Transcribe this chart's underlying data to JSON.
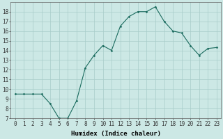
{
  "x": [
    0,
    1,
    2,
    3,
    4,
    5,
    6,
    7,
    8,
    9,
    10,
    11,
    12,
    13,
    14,
    15,
    16,
    17,
    18,
    19,
    20,
    21,
    22,
    23
  ],
  "y": [
    9.5,
    9.5,
    9.5,
    9.5,
    8.5,
    7.0,
    7.0,
    8.8,
    12.2,
    13.5,
    14.5,
    14.0,
    16.5,
    17.5,
    18.0,
    18.0,
    18.5,
    17.0,
    16.0,
    15.8,
    14.5,
    13.5,
    14.2,
    14.3
  ],
  "line_color": "#1a6b5e",
  "marker": "D",
  "marker_size": 1.5,
  "line_width": 0.8,
  "bg_color": "#cce8e5",
  "grid_color": "#a8ccc9",
  "xlabel": "Humidex (Indice chaleur)",
  "xlim": [
    -0.5,
    23.5
  ],
  "ylim": [
    7,
    19
  ],
  "yticks": [
    7,
    8,
    9,
    10,
    11,
    12,
    13,
    14,
    15,
    16,
    17,
    18
  ],
  "xticks": [
    0,
    1,
    2,
    3,
    4,
    5,
    6,
    7,
    8,
    9,
    10,
    11,
    12,
    13,
    14,
    15,
    16,
    17,
    18,
    19,
    20,
    21,
    22,
    23
  ],
  "xlabel_fontsize": 6.5,
  "tick_fontsize": 5.5,
  "xlabel_bold": true
}
